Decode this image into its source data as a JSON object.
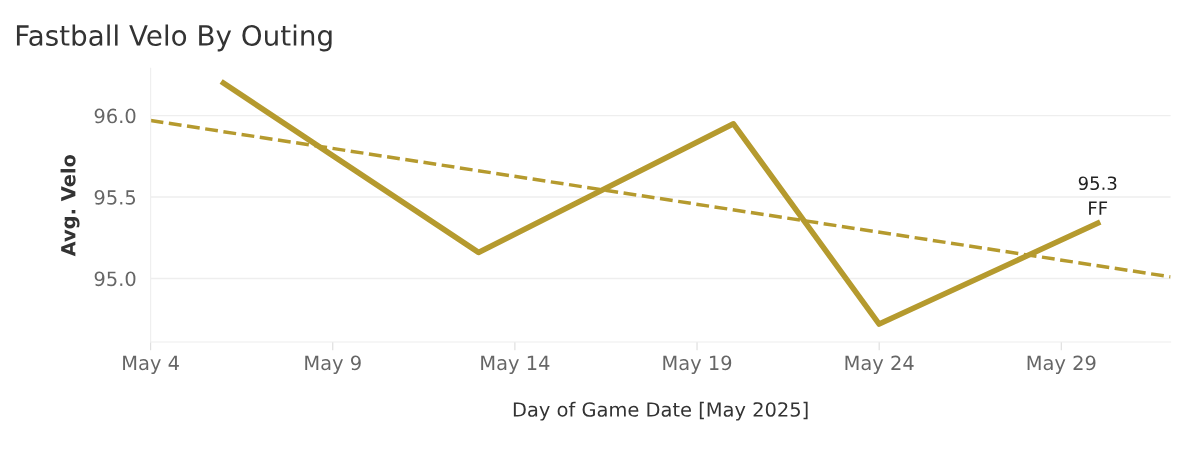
{
  "chart_data": {
    "type": "line",
    "title": "Fastball Velo By Outing",
    "xlabel": "Day of Game Date [May 2025]",
    "ylabel": "Avg. Velo",
    "x": [
      "2025-05-06",
      "2025-05-13",
      "2025-05-20",
      "2025-05-24",
      "2025-05-30"
    ],
    "series": [
      {
        "color": "#b59a2e",
        "values": [
          96.2,
          95.16,
          95.95,
          94.72,
          95.34
        ],
        "value_labels": [
          null,
          null,
          null,
          null,
          "95.3"
        ]
      },
      {
        "type": "line",
        "line_style": "dashed",
        "color": "#b59a2e",
        "x": [
          "2025-05-04",
          "2025-06-01"
        ],
        "values": [
          95.97,
          95.01
        ]
      }
    ],
    "annotations": [
      {
        "text": "FF",
        "x": "2025-05-30",
        "y": 95.34
      }
    ],
    "xlim": [
      "2025-05-04",
      "2025-06-01"
    ],
    "xticks": [
      {
        "value": "2025-05-04",
        "label": "May 4"
      },
      {
        "value": "2025-05-09",
        "label": "May 9"
      },
      {
        "value": "2025-05-14",
        "label": "May 14"
      },
      {
        "value": "2025-05-19",
        "label": "May 19"
      },
      {
        "value": "2025-05-24",
        "label": "May 24"
      },
      {
        "value": "2025-05-29",
        "label": "May 29"
      }
    ],
    "ylim": [
      94.61,
      96.29
    ],
    "yticks": [
      {
        "value": 95.0,
        "label": "95.0"
      },
      {
        "value": 95.5,
        "label": "95.5"
      },
      {
        "value": 96.0,
        "label": "96.0"
      }
    ],
    "grid": "y",
    "line_style": "solid",
    "marker": "none"
  }
}
